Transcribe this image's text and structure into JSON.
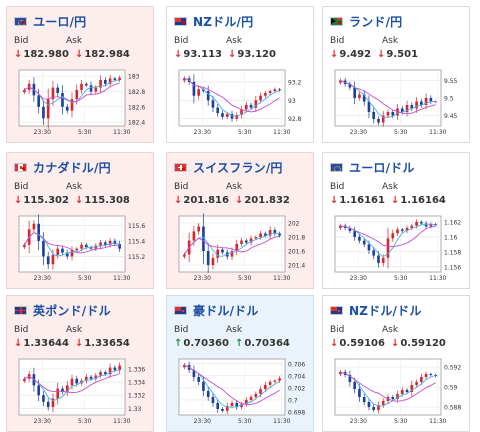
{
  "cards": [
    {
      "pair": "ユーロ/円",
      "flag": "eu-jp-flag-icon",
      "bid_label": "Bid",
      "ask_label": "Ask",
      "bid": "182.980",
      "ask": "182.984",
      "dir": "down",
      "bg": "pink",
      "yticks": [
        "183",
        "182.8",
        "182.6",
        "182.4"
      ],
      "ylim": [
        182.35,
        183.08
      ],
      "xticks": [
        "23:30",
        "5:30",
        "11:30"
      ]
    },
    {
      "pair": "NZドル/円",
      "flag": "nz-jp-flag-icon",
      "bid_label": "Bid",
      "ask_label": "Ask",
      "bid": "93.113",
      "ask": "93.120",
      "dir": "down",
      "bg": "white",
      "yticks": [
        "93.2",
        "93",
        "92.8"
      ],
      "ylim": [
        92.72,
        93.33
      ],
      "xticks": [
        "23:30",
        "5:30",
        "11:30"
      ]
    },
    {
      "pair": "ランド/円",
      "flag": "za-jp-flag-icon",
      "bid_label": "Bid",
      "ask_label": "Ask",
      "bid": "9.492",
      "ask": "9.501",
      "dir": "down",
      "bg": "white",
      "yticks": [
        "9.55",
        "9.5",
        "9.45"
      ],
      "ylim": [
        9.42,
        9.58
      ],
      "xticks": [
        "23:30",
        "5:30",
        "11:30"
      ]
    },
    {
      "pair": "カナダドル/円",
      "flag": "ca-jp-flag-icon",
      "bid_label": "Bid",
      "ask_label": "Ask",
      "bid": "115.302",
      "ask": "115.308",
      "dir": "down",
      "bg": "pink",
      "yticks": [
        "115.6",
        "115.4",
        "115.2"
      ],
      "ylim": [
        115.0,
        115.72
      ],
      "xticks": [
        "23:30",
        "5:30",
        "11:30"
      ]
    },
    {
      "pair": "スイスフラン/円",
      "flag": "ch-jp-flag-icon",
      "bid_label": "Bid",
      "ask_label": "Ask",
      "bid": "201.816",
      "ask": "201.832",
      "dir": "down",
      "bg": "pink",
      "yticks": [
        "202",
        "201.8",
        "201.6",
        "201.4"
      ],
      "ylim": [
        201.3,
        202.1
      ],
      "xticks": [
        "23:30",
        "5:30",
        "11:30"
      ]
    },
    {
      "pair": "ユーロ/ドル",
      "flag": "eu-us-flag-icon",
      "bid_label": "Bid",
      "ask_label": "Ask",
      "bid": "1.16161",
      "ask": "1.16164",
      "dir": "down",
      "bg": "white",
      "yticks": [
        "1.162",
        "1.16",
        "1.158",
        "1.156"
      ],
      "ylim": [
        1.1553,
        1.1628
      ],
      "xticks": [
        "23:30",
        "5:30",
        "11:30"
      ]
    },
    {
      "pair": "英ポンド/ドル",
      "flag": "gb-us-flag-icon",
      "bid_label": "Bid",
      "ask_label": "Ask",
      "bid": "1.33644",
      "ask": "1.33654",
      "dir": "down",
      "bg": "pink",
      "yticks": [
        "1.336",
        "1.334",
        "1.332",
        "1.33"
      ],
      "ylim": [
        1.329,
        1.3375
      ],
      "xticks": [
        "23:30",
        "5:30",
        "11:30"
      ]
    },
    {
      "pair": "豪ドル/ドル",
      "flag": "au-us-flag-icon",
      "bid_label": "Bid",
      "ask_label": "Ask",
      "bid": "0.70360",
      "ask": "0.70364",
      "dir": "up",
      "bg": "blue",
      "yticks": [
        "0.706",
        "0.704",
        "0.702",
        "0.7",
        "0.698"
      ],
      "ylim": [
        0.6975,
        0.7068
      ],
      "xticks": [
        "23:30",
        "5:30",
        "11:30"
      ]
    },
    {
      "pair": "NZドル/ドル",
      "flag": "nz-us-flag-icon",
      "bid_label": "Bid",
      "ask_label": "Ask",
      "bid": "0.59106",
      "ask": "0.59120",
      "dir": "down",
      "bg": "white",
      "yticks": [
        "0.592",
        "0.59",
        "0.588"
      ],
      "ylim": [
        0.5872,
        0.5928
      ],
      "xticks": [
        "23:30",
        "5:30",
        "11:30"
      ]
    }
  ],
  "chart_data": [
    {
      "type": "candlestick",
      "series": [
        {
          "name": "",
          "values": [
            182.82,
            182.9,
            182.75,
            182.6,
            182.45,
            182.7,
            182.85,
            182.78,
            182.6,
            182.55,
            182.7,
            182.82,
            182.9,
            182.88,
            182.8,
            182.85,
            182.95,
            182.9,
            182.97,
            182.95,
            182.98
          ]
        }
      ]
    },
    {
      "type": "candlestick",
      "series": [
        {
          "name": "",
          "values": [
            93.24,
            93.2,
            93.05,
            93.12,
            93.1,
            93.0,
            92.92,
            92.86,
            92.82,
            92.85,
            92.8,
            92.84,
            92.9,
            92.95,
            92.92,
            93.0,
            93.05,
            93.08,
            93.1,
            93.12,
            93.11
          ]
        }
      ]
    },
    {
      "type": "candlestick",
      "series": [
        {
          "name": "",
          "values": [
            9.55,
            9.54,
            9.53,
            9.5,
            9.51,
            9.49,
            9.46,
            9.44,
            9.43,
            9.45,
            9.46,
            9.45,
            9.47,
            9.46,
            9.48,
            9.47,
            9.49,
            9.48,
            9.5,
            9.49,
            9.49
          ]
        }
      ]
    },
    {
      "type": "candlestick",
      "series": [
        {
          "name": "",
          "values": [
            115.35,
            115.55,
            115.62,
            115.4,
            115.2,
            115.1,
            115.22,
            115.3,
            115.25,
            115.2,
            115.28,
            115.3,
            115.35,
            115.32,
            115.3,
            115.34,
            115.38,
            115.35,
            115.4,
            115.36,
            115.3
          ]
        }
      ]
    },
    {
      "type": "candlestick",
      "series": [
        {
          "name": "",
          "values": [
            201.55,
            201.75,
            201.88,
            201.95,
            201.6,
            201.4,
            201.5,
            201.62,
            201.58,
            201.52,
            201.6,
            201.7,
            201.75,
            201.72,
            201.78,
            201.8,
            201.85,
            201.82,
            201.9,
            201.85,
            201.82
          ]
        }
      ]
    },
    {
      "type": "candlestick",
      "series": [
        {
          "name": "",
          "values": [
            1.1615,
            1.1612,
            1.1608,
            1.16,
            1.1595,
            1.159,
            1.1582,
            1.1575,
            1.1565,
            1.1572,
            1.1598,
            1.1605,
            1.161,
            1.1608,
            1.1612,
            1.1615,
            1.162,
            1.1618,
            1.1614,
            1.1617,
            1.1616
          ]
        }
      ]
    },
    {
      "type": "candlestick",
      "series": [
        {
          "name": "",
          "values": [
            1.3345,
            1.3352,
            1.3335,
            1.332,
            1.331,
            1.3302,
            1.3315,
            1.333,
            1.3325,
            1.3335,
            1.3345,
            1.3338,
            1.3342,
            1.3348,
            1.3345,
            1.335,
            1.3355,
            1.3352,
            1.3362,
            1.3358,
            1.3365
          ]
        }
      ]
    },
    {
      "type": "candlestick",
      "series": [
        {
          "name": "",
          "values": [
            0.7058,
            0.705,
            0.7038,
            0.703,
            0.7015,
            0.7005,
            0.6995,
            0.6985,
            0.6982,
            0.699,
            0.6995,
            0.6988,
            0.6993,
            0.7,
            0.7005,
            0.701,
            0.7018,
            0.7025,
            0.703,
            0.7032,
            0.7036
          ]
        }
      ]
    },
    {
      "type": "candlestick",
      "series": [
        {
          "name": "",
          "values": [
            0.5915,
            0.5912,
            0.5905,
            0.5898,
            0.589,
            0.5885,
            0.588,
            0.5877,
            0.5882,
            0.5886,
            0.589,
            0.5888,
            0.5893,
            0.5897,
            0.5895,
            0.5902,
            0.5905,
            0.591,
            0.5913,
            0.5912,
            0.5911
          ]
        }
      ]
    }
  ]
}
